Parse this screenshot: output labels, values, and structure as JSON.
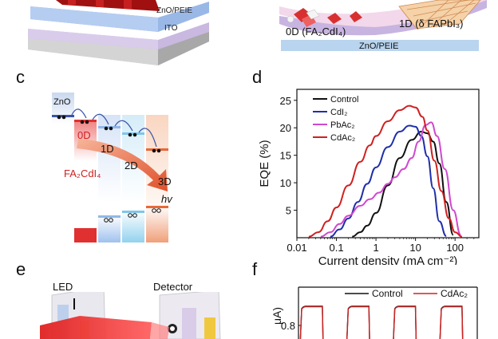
{
  "panels": {
    "c": "c",
    "d": "d",
    "e": "e",
    "f": "f"
  },
  "panel_a": {
    "layer_zno": "ZnO/PEIE",
    "layer_ito": "ITO"
  },
  "panel_b": {
    "label_0d": "0D (FA₂CdI₄)",
    "label_1d": "1D (δ FAPbI₃)",
    "layer_zno": "ZnO/PEIE"
  },
  "panel_c": {
    "zno": "ZnO",
    "d0": "0D",
    "d1": "1D",
    "d2": "2D",
    "d3": "3D",
    "compound": "FA₂CdI₄",
    "hv": "hv",
    "colors": {
      "zno_level": "#3a55a8",
      "d0": "#e03030",
      "d1": "#8fb8e8",
      "d2": "#7fc6ea",
      "d3": "#e86838",
      "arrow": "#e0502a"
    }
  },
  "panel_e": {
    "led": "LED",
    "detector": "Detector"
  },
  "chart_data": [
    {
      "type": "line",
      "panel": "d",
      "xlabel": "Current density (mA cm⁻²)",
      "ylabel": "EQE (%)",
      "xscale": "log",
      "xlim": [
        0.01,
        400
      ],
      "ylim": [
        0,
        27
      ],
      "xticks": [
        0.01,
        0.1,
        1,
        10,
        100
      ],
      "xtick_labels": [
        "0.01",
        "0.1",
        "1",
        "10",
        "100"
      ],
      "yticks": [
        5,
        10,
        15,
        20,
        25
      ],
      "ytick_labels": [
        "5",
        "10",
        "15",
        "20",
        "25"
      ],
      "legend_position": "top-right",
      "series": [
        {
          "name": "Control",
          "color": "#111111",
          "x": [
            0.25,
            0.4,
            0.6,
            1,
            2,
            4,
            8,
            14,
            20,
            28,
            40,
            60,
            90
          ],
          "y": [
            0.2,
            1.0,
            2.2,
            4.5,
            9.5,
            14.5,
            17.8,
            19.3,
            19.0,
            17.5,
            13.5,
            6.5,
            0.5
          ]
        },
        {
          "name": "CdI₂",
          "color": "#1f2fa8",
          "x": [
            0.07,
            0.12,
            0.2,
            0.35,
            0.6,
            1,
            2,
            4,
            7,
            10,
            14,
            20,
            28,
            40,
            60
          ],
          "y": [
            0.2,
            1.5,
            3.5,
            6.5,
            9.8,
            12.8,
            16.5,
            19.3,
            20.4,
            20.2,
            18.5,
            14.8,
            9.0,
            3.0,
            0.3
          ]
        },
        {
          "name": "PbAc₂",
          "color": "#d048cf",
          "x": [
            0.04,
            0.07,
            0.12,
            0.2,
            0.4,
            0.7,
            1.2,
            2,
            3,
            5,
            8,
            12,
            18,
            25,
            35,
            55,
            90,
            140
          ],
          "y": [
            0.2,
            1.0,
            2.5,
            4.0,
            5.8,
            7.0,
            8.2,
            9.8,
            11.0,
            12.5,
            14.5,
            17.5,
            20.5,
            21.0,
            18.5,
            12.5,
            5.0,
            0.5
          ]
        },
        {
          "name": "CdAc₂",
          "color": "#d02020",
          "x": [
            0.02,
            0.035,
            0.06,
            0.1,
            0.2,
            0.4,
            0.7,
            1,
            2,
            4,
            7,
            10,
            15,
            20,
            30,
            45,
            70,
            100,
            150
          ],
          "y": [
            0.2,
            1.0,
            3.0,
            5.5,
            9.5,
            13.8,
            16.8,
            18.5,
            21.2,
            23.2,
            24.0,
            23.7,
            22.0,
            19.5,
            14.0,
            8.5,
            3.5,
            1.0,
            0.2
          ]
        }
      ]
    },
    {
      "type": "line",
      "panel": "f",
      "ylabel": "μA)",
      "ytick_labels": [
        "0.8"
      ],
      "yticks": [
        0.8
      ],
      "ylim": [
        0.65,
        1.0
      ],
      "legend_position": "top",
      "series": [
        {
          "name": "Control",
          "color": "#111111",
          "pulses_on": [
            [
              0,
              0.12
            ],
            [
              0.27,
              0.39
            ],
            [
              0.54,
              0.66
            ],
            [
              0.81,
              0.93
            ]
          ],
          "on_value": 0.9
        },
        {
          "name": "CdAc₂",
          "color": "#d02020",
          "pulses_on": [
            [
              0,
              0.12
            ],
            [
              0.27,
              0.39
            ],
            [
              0.54,
              0.66
            ],
            [
              0.81,
              0.93
            ]
          ],
          "on_value": 0.9
        }
      ]
    }
  ]
}
